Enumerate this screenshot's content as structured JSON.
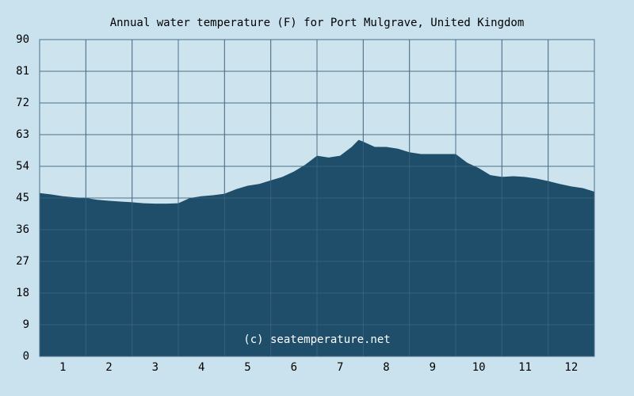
{
  "chart_data": {
    "type": "area",
    "title": "Annual water temperature (F) for Port Mulgrave, United Kingdom",
    "xlabel": "",
    "ylabel": "",
    "ylim": [
      0,
      90
    ],
    "xlim": [
      0.5,
      12.5
    ],
    "yticks": [
      0,
      9,
      18,
      27,
      36,
      45,
      54,
      63,
      72,
      81,
      90
    ],
    "xticks": [
      1,
      2,
      3,
      4,
      5,
      6,
      7,
      8,
      9,
      10,
      11,
      12
    ],
    "grid": true,
    "credit": "(c) seatemperature.net",
    "colors": {
      "background": "#cae2ee",
      "plot_background": "#cde4ef",
      "area_fill": "#1f4e6a",
      "grid": "#4d6f8a",
      "axis_frame": "#4d6f8a",
      "text": "#000000",
      "credit_text": "#ffffff"
    },
    "x": [
      0.5,
      0.75,
      1.0,
      1.25,
      1.5,
      1.75,
      2.0,
      2.25,
      2.5,
      2.75,
      3.0,
      3.25,
      3.5,
      3.75,
      4.0,
      4.25,
      4.5,
      4.75,
      5.0,
      5.25,
      5.5,
      5.75,
      6.0,
      6.25,
      6.5,
      6.75,
      7.0,
      7.25,
      7.4,
      7.5,
      7.75,
      8.0,
      8.25,
      8.5,
      8.75,
      9.0,
      9.25,
      9.5,
      9.75,
      10.0,
      10.25,
      10.5,
      10.75,
      11.0,
      11.25,
      11.5,
      11.75,
      12.0,
      12.25,
      12.5
    ],
    "y": [
      46.4,
      46.0,
      45.5,
      45.2,
      45.0,
      44.5,
      44.2,
      44.0,
      43.8,
      43.5,
      43.4,
      43.4,
      43.5,
      45.0,
      45.5,
      45.8,
      46.2,
      47.5,
      48.5,
      49.0,
      50.0,
      51.0,
      52.5,
      54.5,
      57.0,
      56.5,
      57.0,
      59.5,
      61.5,
      61.0,
      59.5,
      59.5,
      59.0,
      58.0,
      57.5,
      57.5,
      57.5,
      57.5,
      55.0,
      53.5,
      51.5,
      51.0,
      51.2,
      51.0,
      50.5,
      49.8,
      49.0,
      48.3,
      47.8,
      46.8
    ]
  }
}
